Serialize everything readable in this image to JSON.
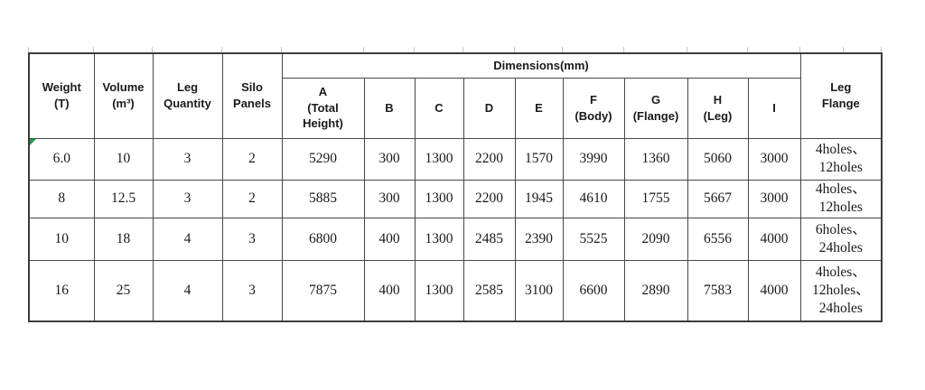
{
  "table": {
    "group_header": "Dimensions(mm)",
    "columns": [
      {
        "id": "weight",
        "label": "Weight\n(T)"
      },
      {
        "id": "volume",
        "label": "Volume\n(m³)"
      },
      {
        "id": "leg-quantity",
        "label": "Leg\nQuantity"
      },
      {
        "id": "silo-panels",
        "label": "Silo\nPanels"
      },
      {
        "id": "a-total-height",
        "label": "A\n(Total\nHeight)"
      },
      {
        "id": "b",
        "label": "B"
      },
      {
        "id": "c",
        "label": "C"
      },
      {
        "id": "d",
        "label": "D"
      },
      {
        "id": "e",
        "label": "E"
      },
      {
        "id": "f-body",
        "label": "F\n(Body)"
      },
      {
        "id": "g-flange",
        "label": "G\n(Flange)"
      },
      {
        "id": "h-leg",
        "label": "H\n(Leg)"
      },
      {
        "id": "i",
        "label": "I"
      },
      {
        "id": "leg-flange",
        "label": "Leg\nFlange"
      }
    ],
    "rows": [
      {
        "cells": [
          "6.0",
          "10",
          "3",
          "2",
          "5290",
          "300",
          "1300",
          "2200",
          "1570",
          "3990",
          "1360",
          "5060",
          "3000",
          "4holes、\n12holes"
        ]
      },
      {
        "cells": [
          "8",
          "12.5",
          "3",
          "2",
          "5885",
          "300",
          "1300",
          "2200",
          "1945",
          "4610",
          "1755",
          "5667",
          "3000",
          "4holes、\n12holes"
        ]
      },
      {
        "cells": [
          "10",
          "18",
          "4",
          "3",
          "6800",
          "400",
          "1300",
          "2485",
          "2390",
          "5525",
          "2090",
          "6556",
          "4000",
          "6holes、\n24holes"
        ]
      },
      {
        "cells": [
          "16",
          "25",
          "4",
          "3",
          "7875",
          "400",
          "1300",
          "2585",
          "3100",
          "6600",
          "2890",
          "7583",
          "4000",
          "4holes、\n12holes、\n24holes"
        ]
      }
    ],
    "error_indicator_color": "#1f9d4f"
  }
}
